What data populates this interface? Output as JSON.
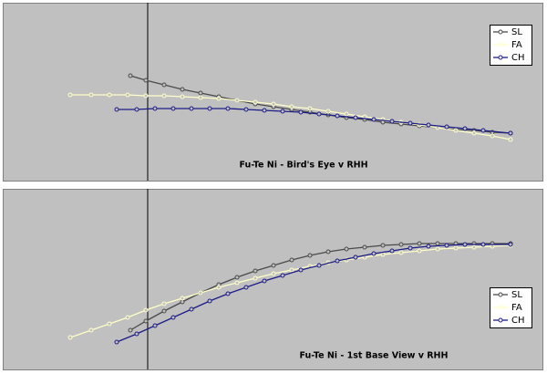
{
  "chart_data": [
    {
      "type": "line",
      "title": "Fu-Te Ni - Bird's Eye v RHH",
      "xlim": [
        3,
        596
      ],
      "ylim": [
        0,
        195
      ],
      "vline_x": 162,
      "legend": "top-right",
      "series": [
        {
          "name": "SL",
          "color": "#4a4a4a",
          "x": [
            143,
            160,
            180,
            200,
            220,
            240,
            260,
            280,
            300,
            320,
            340,
            360,
            380,
            400,
            420,
            440,
            460,
            480,
            500,
            520,
            540,
            560
          ],
          "values": [
            115,
            110,
            105,
            100,
            96,
            92,
            88,
            84,
            81,
            78,
            75,
            72,
            69,
            67,
            64,
            62,
            60,
            58,
            56,
            55,
            53,
            52
          ]
        },
        {
          "name": "FA",
          "color": "#ffffc8",
          "x": [
            77,
            100,
            120,
            140,
            160,
            180,
            200,
            220,
            240,
            260,
            280,
            300,
            320,
            340,
            360,
            380,
            400,
            420,
            440,
            460,
            480,
            500,
            520,
            540,
            560
          ],
          "values": [
            94,
            94,
            94,
            94,
            93,
            93,
            92,
            91,
            90,
            88,
            86,
            84,
            81,
            79,
            76,
            73,
            70,
            67,
            64,
            61,
            58,
            55,
            52,
            49,
            45
          ]
        },
        {
          "name": "CH",
          "color": "#1c1c86",
          "x": [
            128,
            150,
            170,
            190,
            210,
            230,
            250,
            270,
            290,
            310,
            330,
            350,
            370,
            390,
            410,
            430,
            450,
            470,
            490,
            510,
            530,
            560
          ],
          "values": [
            78,
            78,
            79,
            79,
            79,
            79,
            79,
            78,
            77,
            76,
            75,
            73,
            71,
            69,
            67,
            65,
            63,
            61,
            59,
            57,
            55,
            52
          ]
        }
      ]
    },
    {
      "type": "line",
      "title": "Fu-Te Ni - 1st Base View v RHH",
      "xlim": [
        3,
        596
      ],
      "ylim": [
        0,
        198
      ],
      "vline_x": 162,
      "legend": "bottom-right",
      "series": [
        {
          "name": "SL",
          "color": "#4a4a4a",
          "x": [
            143,
            160,
            180,
            200,
            220,
            240,
            260,
            280,
            300,
            320,
            340,
            360,
            380,
            400,
            420,
            440,
            460,
            480,
            500,
            520,
            540,
            560
          ],
          "values": [
            43,
            53,
            64,
            74,
            84,
            93,
            101,
            108,
            114,
            120,
            125,
            129,
            132,
            134,
            136,
            137,
            138,
            138,
            138,
            138,
            138,
            138
          ]
        },
        {
          "name": "FA",
          "color": "#ffffc8",
          "x": [
            77,
            100,
            120,
            140,
            160,
            180,
            200,
            220,
            240,
            260,
            280,
            300,
            320,
            340,
            360,
            380,
            400,
            420,
            440,
            460,
            480,
            500,
            520,
            540,
            560
          ],
          "values": [
            35,
            43,
            50,
            57,
            65,
            72,
            78,
            84,
            90,
            95,
            100,
            105,
            109,
            113,
            117,
            120,
            123,
            126,
            128,
            130,
            132,
            133,
            134,
            135,
            136
          ]
        },
        {
          "name": "CH",
          "color": "#1c1c86",
          "x": [
            128,
            150,
            170,
            190,
            210,
            230,
            250,
            270,
            290,
            310,
            330,
            350,
            370,
            390,
            410,
            430,
            450,
            470,
            490,
            510,
            530,
            560
          ],
          "values": [
            30,
            39,
            48,
            57,
            66,
            75,
            83,
            90,
            97,
            103,
            109,
            114,
            119,
            123,
            127,
            130,
            133,
            135,
            136,
            137,
            137,
            137
          ]
        }
      ]
    }
  ]
}
